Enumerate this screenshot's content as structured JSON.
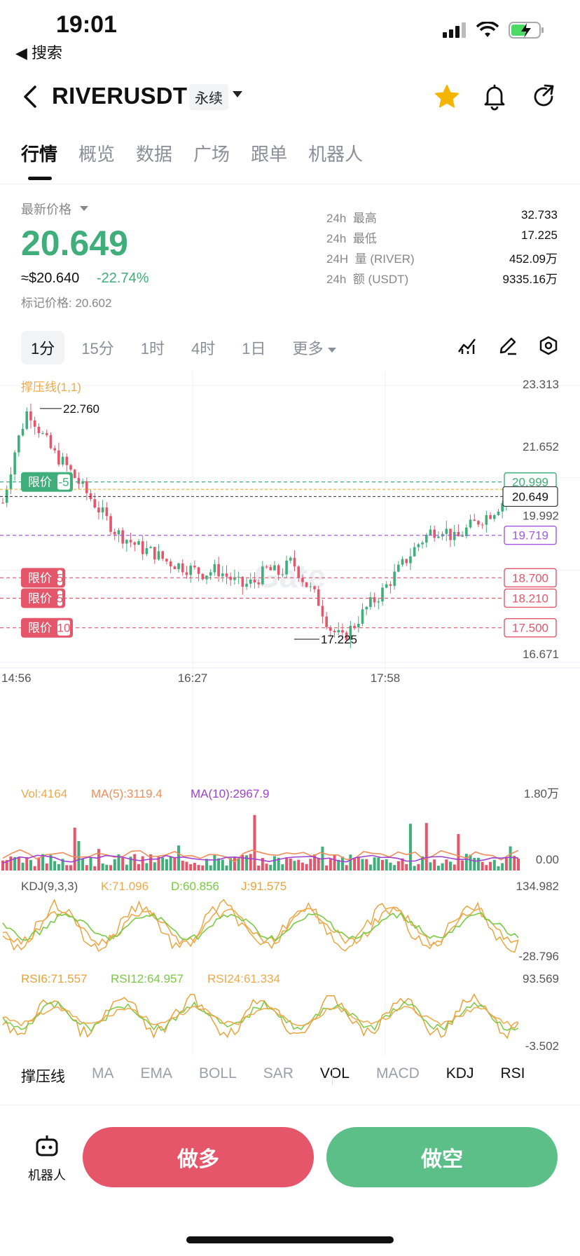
{
  "status_bar": {
    "time": "19:01",
    "back_label": "◀ 搜索"
  },
  "header": {
    "pair": "RIVERUSDT",
    "contract_type": "永续"
  },
  "tabs": [
    {
      "label": "行情",
      "active": true
    },
    {
      "label": "概览",
      "active": false
    },
    {
      "label": "数据",
      "active": false
    },
    {
      "label": "广场",
      "active": false
    },
    {
      "label": "跟单",
      "active": false
    },
    {
      "label": "机器人",
      "active": false
    }
  ],
  "ticker": {
    "latest_label": "最新价格",
    "last_price": "20.649",
    "usd_price": "≈$20.640",
    "change_pct": "-22.74%",
    "mark_price": "标记价格: 20.602",
    "stats": [
      {
        "period": "24h",
        "key": "最高",
        "value": "32.733"
      },
      {
        "period": "24h",
        "key": "最低",
        "value": "17.225"
      },
      {
        "period": "24H",
        "key": "量 (RIVER)",
        "value": "452.09万"
      },
      {
        "period": "24h",
        "key": "额 (USDT)",
        "value": "9335.16万"
      }
    ]
  },
  "intervals": [
    {
      "label": "1分",
      "active": true
    },
    {
      "label": "15分",
      "active": false
    },
    {
      "label": "1时",
      "active": false
    },
    {
      "label": "4时",
      "active": false
    },
    {
      "label": "1日",
      "active": false
    }
  ],
  "more_label": "更多",
  "chart_data": {
    "type": "candlestick",
    "indicator_label": "撑压线(1,1)",
    "price_axis": [
      "23.313",
      "21.652",
      "19.992",
      "16.671"
    ],
    "ylim": [
      16.671,
      23.313
    ],
    "time_axis": [
      "14:56",
      "16:27",
      "17:58"
    ],
    "high_marker": "22.760",
    "low_marker": "17.225",
    "current_price": "20.649",
    "lines": [
      {
        "label": "20.999",
        "value": 20.999,
        "color": "#3fae7a"
      },
      {
        "label": "19.719",
        "value": 19.719,
        "color": "#a259e0"
      },
      {
        "label": "18.700",
        "value": 18.7,
        "color": "#e5566a"
      },
      {
        "label": "18.210",
        "value": 18.21,
        "color": "#e5566a"
      },
      {
        "label": "17.500",
        "value": 17.5,
        "color": "#e5566a"
      }
    ],
    "orders": [
      {
        "label": "限价",
        "qty": "-5",
        "value": 20.999,
        "color": "#3fae7a"
      },
      {
        "label": "限价",
        "qty": "5",
        "value": 18.7,
        "color": "#e5566a"
      },
      {
        "label": "限价",
        "qty": "5",
        "value": 18.21,
        "color": "#e5566a"
      },
      {
        "label": "限价",
        "qty": "10",
        "value": 17.5,
        "color": "#e5566a"
      }
    ],
    "watermark": "Gate",
    "volume": {
      "vol": "Vol:4164",
      "ma5": "MA(5):3119.4",
      "ma10": "MA(10):2967.9",
      "axis_top": "1.80万",
      "axis_bottom": "0.00"
    },
    "kdj": {
      "label": "KDJ(9,3,3)",
      "k": "K:71.096",
      "d": "D:60.856",
      "j": "J:91.575",
      "axis_top": "134.982",
      "axis_bottom": "-28.796"
    },
    "rsi": {
      "rsi6": "RSI6:71.557",
      "rsi12": "RSI12:64.957",
      "rsi24": "RSI24:61.334",
      "axis_top": "93.569",
      "axis_bottom": "-3.502"
    },
    "colors": {
      "up": "#3fae7a",
      "down": "#e5566a",
      "current": "#333333",
      "resist": "#f0b94a"
    }
  },
  "indicator_tabs": [
    {
      "label": "撑压线",
      "on": true
    },
    {
      "label": "MA",
      "on": false
    },
    {
      "label": "EMA",
      "on": false
    },
    {
      "label": "BOLL",
      "on": false
    },
    {
      "label": "SAR",
      "on": false
    },
    {
      "label": "VOL",
      "on": true
    },
    {
      "label": "MACD",
      "on": false
    },
    {
      "label": "KDJ",
      "on": true
    },
    {
      "label": "RSI",
      "on": true
    }
  ],
  "actions": {
    "robot_label": "机器人",
    "long_label": "做多",
    "short_label": "做空"
  }
}
